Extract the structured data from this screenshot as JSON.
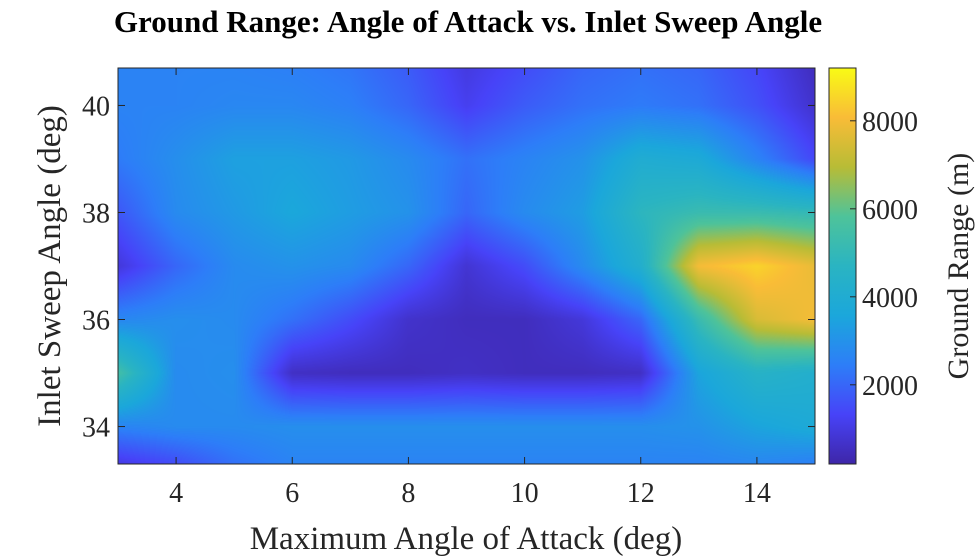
{
  "chart_data": {
    "type": "heatmap",
    "title": "Ground Range: Angle of Attack vs. Inlet Sweep Angle",
    "xlabel": "Maximum Angle of Attack (deg)",
    "ylabel": "Inlet Sweep Angle (deg)",
    "colorbar_label": "Ground Range (m)",
    "xlim": [
      3,
      15
    ],
    "ylim": [
      33.3,
      40.7
    ],
    "clim": [
      200,
      9200
    ],
    "colormap": "parula",
    "xticks": [
      4,
      6,
      8,
      10,
      12,
      14
    ],
    "yticks": [
      34,
      36,
      38,
      40
    ],
    "cticks": [
      2000,
      4000,
      6000,
      8000
    ],
    "x": [
      3,
      4,
      5,
      6,
      7,
      8,
      9,
      10,
      11,
      12,
      13,
      14,
      15
    ],
    "y": [
      33.3,
      34,
      35,
      36,
      37,
      38,
      39,
      40,
      40.7
    ],
    "z": [
      [
        1000,
        1500,
        2200,
        2600,
        2600,
        2600,
        2600,
        2600,
        2600,
        2600,
        2600,
        2700,
        2500
      ],
      [
        2600,
        2800,
        2800,
        2900,
        2900,
        2900,
        2900,
        2900,
        2900,
        2900,
        3000,
        3500,
        3800
      ],
      [
        5500,
        2800,
        2900,
        600,
        500,
        500,
        600,
        500,
        500,
        600,
        3500,
        4500,
        4200
      ],
      [
        2700,
        2900,
        2800,
        2200,
        1500,
        700,
        500,
        500,
        900,
        2000,
        5200,
        7500,
        8000
      ],
      [
        900,
        2000,
        2800,
        3000,
        2800,
        2000,
        800,
        1500,
        2800,
        4200,
        8000,
        8500,
        7800
      ],
      [
        1700,
        2800,
        3200,
        3600,
        3300,
        3000,
        2000,
        2800,
        3300,
        4800,
        5200,
        5200,
        5000
      ],
      [
        2400,
        2900,
        3400,
        3400,
        3200,
        2800,
        2200,
        2600,
        3000,
        4000,
        3800,
        2600,
        1400
      ],
      [
        2600,
        2600,
        2700,
        2700,
        2500,
        2000,
        1200,
        1800,
        2200,
        2400,
        2200,
        1600,
        700
      ],
      [
        2600,
        2600,
        2600,
        2500,
        2300,
        1800,
        1000,
        1500,
        2000,
        2200,
        2000,
        1400,
        500
      ]
    ]
  }
}
